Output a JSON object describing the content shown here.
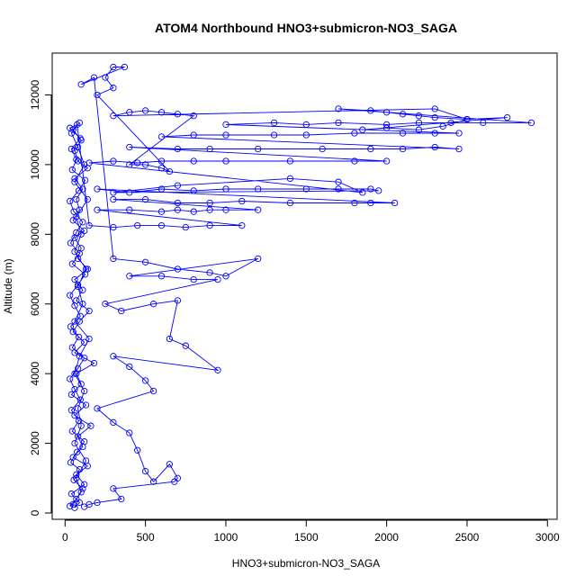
{
  "chart_data": {
    "type": "scatter",
    "title": "ATOM4 Northbound HNO3+submicron-NO3_SAGA",
    "xlabel": "HNO3+submicron-NO3_SAGA",
    "ylabel": "Altitude (m)",
    "xlim": [
      -80,
      3060
    ],
    "ylim": [
      -180,
      13200
    ],
    "xticks": [
      0,
      500,
      1000,
      1500,
      2000,
      2500,
      3000
    ],
    "yticks": [
      0,
      2000,
      4000,
      6000,
      8000,
      10000,
      12000
    ],
    "grid": false,
    "legend": "none",
    "series": [
      {
        "marker": "open-circle",
        "line": true,
        "color": "#0000ff",
        "points": [
          [
            60,
            150
          ],
          [
            90,
            300
          ],
          [
            40,
            550
          ],
          [
            120,
            820
          ],
          [
            70,
            1100
          ],
          [
            140,
            1350
          ],
          [
            50,
            1600
          ],
          [
            110,
            1900
          ],
          [
            80,
            2200
          ],
          [
            160,
            2500
          ],
          [
            60,
            2800
          ],
          [
            130,
            3100
          ],
          [
            40,
            3400
          ],
          [
            100,
            3700
          ],
          [
            70,
            4000
          ],
          [
            180,
            4300
          ],
          [
            60,
            4600
          ],
          [
            120,
            4900
          ],
          [
            50,
            5200
          ],
          [
            90,
            5500
          ],
          [
            150,
            5800
          ],
          [
            70,
            6100
          ],
          [
            110,
            6400
          ],
          [
            60,
            6700
          ],
          [
            140,
            7000
          ],
          [
            80,
            7300
          ],
          [
            100,
            7600
          ],
          [
            60,
            7900
          ],
          [
            120,
            8100
          ],
          [
            50,
            8400
          ],
          [
            90,
            8700
          ],
          [
            70,
            9000
          ],
          [
            110,
            9300
          ],
          [
            60,
            9600
          ],
          [
            140,
            9900
          ],
          [
            80,
            10100
          ],
          [
            60,
            10400
          ],
          [
            100,
            10700
          ],
          [
            50,
            11000
          ],
          [
            90,
            11200
          ],
          [
            40,
            10900
          ],
          [
            80,
            10500
          ],
          [
            120,
            10000
          ],
          [
            60,
            9500
          ],
          [
            140,
            9000
          ],
          [
            70,
            8500
          ],
          [
            100,
            8000
          ],
          [
            60,
            7500
          ],
          [
            130,
            7000
          ],
          [
            80,
            6500
          ],
          [
            110,
            6000
          ],
          [
            60,
            5500
          ],
          [
            150,
            5000
          ],
          [
            90,
            4500
          ],
          [
            60,
            4000
          ],
          [
            120,
            3500
          ],
          [
            80,
            3000
          ],
          [
            100,
            2500
          ],
          [
            60,
            2000
          ],
          [
            130,
            1500
          ],
          [
            70,
            1000
          ],
          [
            100,
            600
          ],
          [
            50,
            250
          ],
          [
            30,
            200
          ],
          [
            70,
            400
          ],
          [
            110,
            700
          ],
          [
            55,
            950
          ],
          [
            90,
            1250
          ],
          [
            35,
            1450
          ],
          [
            75,
            1750
          ],
          [
            120,
            2050
          ],
          [
            45,
            2350
          ],
          [
            85,
            2650
          ],
          [
            40,
            2950
          ],
          [
            95,
            3250
          ],
          [
            60,
            3550
          ],
          [
            30,
            3850
          ],
          [
            80,
            4150
          ],
          [
            120,
            4450
          ],
          [
            45,
            4750
          ],
          [
            85,
            5050
          ],
          [
            35,
            5350
          ],
          [
            95,
            5650
          ],
          [
            60,
            5950
          ],
          [
            30,
            6250
          ],
          [
            80,
            6550
          ],
          [
            125,
            6850
          ],
          [
            45,
            7150
          ],
          [
            90,
            7450
          ],
          [
            35,
            7750
          ],
          [
            70,
            8050
          ],
          [
            110,
            8350
          ],
          [
            55,
            8650
          ],
          [
            30,
            8950
          ],
          [
            85,
            9250
          ],
          [
            125,
            9550
          ],
          [
            45,
            9850
          ],
          [
            70,
            10150
          ],
          [
            40,
            10450
          ],
          [
            95,
            10750
          ],
          [
            30,
            11050
          ],
          [
            75,
            11150
          ],
          [
            150,
            8250
          ],
          [
            300,
            8200
          ],
          [
            450,
            8250
          ],
          [
            600,
            8250
          ],
          [
            750,
            8200
          ],
          [
            900,
            8250
          ],
          [
            1100,
            8250
          ],
          [
            200,
            8700
          ],
          [
            400,
            8700
          ],
          [
            600,
            8650
          ],
          [
            700,
            8700
          ],
          [
            800,
            8650
          ],
          [
            900,
            8700
          ],
          [
            1000,
            8700
          ],
          [
            1200,
            8700
          ],
          [
            300,
            9000
          ],
          [
            500,
            9000
          ],
          [
            700,
            8900
          ],
          [
            900,
            8900
          ],
          [
            1100,
            8950
          ],
          [
            1400,
            8900
          ],
          [
            1800,
            8900
          ],
          [
            1900,
            8900
          ],
          [
            2050,
            8900
          ],
          [
            200,
            9300
          ],
          [
            400,
            9200
          ],
          [
            600,
            9300
          ],
          [
            800,
            9250
          ],
          [
            1000,
            9300
          ],
          [
            1200,
            9300
          ],
          [
            1500,
            9300
          ],
          [
            1700,
            9300
          ],
          [
            1900,
            9300
          ],
          [
            1950,
            9250
          ],
          [
            300,
            9200
          ],
          [
            700,
            9400
          ],
          [
            1400,
            9600
          ],
          [
            1700,
            9500
          ],
          [
            1850,
            9200
          ],
          [
            150,
            10050
          ],
          [
            300,
            10100
          ],
          [
            450,
            10050
          ],
          [
            600,
            10100
          ],
          [
            800,
            10100
          ],
          [
            1000,
            10100
          ],
          [
            1400,
            10100
          ],
          [
            1800,
            10100
          ],
          [
            2000,
            10100
          ],
          [
            400,
            10500
          ],
          [
            700,
            10450
          ],
          [
            900,
            10450
          ],
          [
            1200,
            10450
          ],
          [
            1600,
            10450
          ],
          [
            1900,
            10450
          ],
          [
            2100,
            10450
          ],
          [
            2300,
            10500
          ],
          [
            2450,
            10450
          ],
          [
            600,
            10800
          ],
          [
            800,
            10850
          ],
          [
            1000,
            10850
          ],
          [
            1300,
            10850
          ],
          [
            1500,
            10850
          ],
          [
            1800,
            10900
          ],
          [
            2100,
            10900
          ],
          [
            2300,
            10900
          ],
          [
            2450,
            10900
          ],
          [
            1000,
            11150
          ],
          [
            1300,
            11200
          ],
          [
            1500,
            11150
          ],
          [
            1700,
            11200
          ],
          [
            2000,
            11150
          ],
          [
            2200,
            11200
          ],
          [
            2400,
            11200
          ],
          [
            2600,
            11200
          ],
          [
            2900,
            11200
          ],
          [
            1700,
            11600
          ],
          [
            1900,
            11550
          ],
          [
            2000,
            11500
          ],
          [
            2100,
            11450
          ],
          [
            2200,
            11400
          ],
          [
            2300,
            11350
          ],
          [
            2500,
            11300
          ],
          [
            2750,
            11350
          ],
          [
            1850,
            11000
          ],
          [
            2000,
            11050
          ],
          [
            2200,
            11000
          ],
          [
            2350,
            11100
          ],
          [
            2500,
            11300
          ],
          [
            2300,
            11600
          ],
          [
            300,
            11400
          ],
          [
            400,
            11500
          ],
          [
            500,
            11550
          ],
          [
            600,
            11500
          ],
          [
            700,
            11450
          ],
          [
            800,
            11400
          ],
          [
            400,
            10000
          ],
          [
            500,
            10000
          ],
          [
            600,
            9900
          ],
          [
            650,
            9800
          ],
          [
            200,
            12000
          ],
          [
            300,
            12200
          ],
          [
            250,
            12500
          ],
          [
            300,
            12800
          ],
          [
            370,
            12800
          ],
          [
            100,
            12300
          ],
          [
            180,
            12500
          ],
          [
            300,
            7300
          ],
          [
            500,
            7200
          ],
          [
            700,
            7000
          ],
          [
            900,
            6900
          ],
          [
            1000,
            6800
          ],
          [
            1200,
            7300
          ],
          [
            400,
            6800
          ],
          [
            600,
            6800
          ],
          [
            800,
            6700
          ],
          [
            950,
            6700
          ],
          [
            250,
            6000
          ],
          [
            350,
            5800
          ],
          [
            550,
            6000
          ],
          [
            700,
            6100
          ],
          [
            650,
            5000
          ],
          [
            750,
            4800
          ],
          [
            950,
            4100
          ],
          [
            300,
            4500
          ],
          [
            400,
            4200
          ],
          [
            500,
            3800
          ],
          [
            550,
            3500
          ],
          [
            200,
            3000
          ],
          [
            300,
            2600
          ],
          [
            400,
            2300
          ],
          [
            450,
            1800
          ],
          [
            500,
            1200
          ],
          [
            550,
            900
          ],
          [
            650,
            1400
          ],
          [
            700,
            1000
          ],
          [
            680,
            900
          ],
          [
            300,
            700
          ],
          [
            350,
            400
          ],
          [
            200,
            300
          ],
          [
            150,
            250
          ],
          [
            120,
            180
          ]
        ]
      }
    ]
  }
}
